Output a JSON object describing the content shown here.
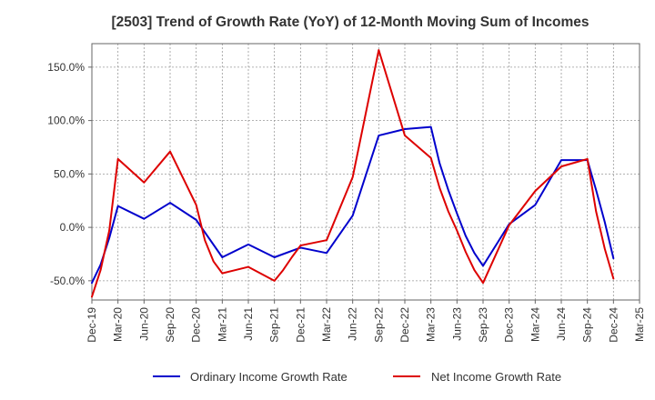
{
  "chart_data": {
    "type": "line",
    "title": "[2503]  Trend of Growth Rate (YoY) of 12-Month Moving Sum of Incomes",
    "xlabel": "",
    "ylabel": "",
    "x_tick_labels": [
      "Dec-19",
      "Mar-20",
      "Jun-20",
      "Sep-20",
      "Dec-20",
      "Mar-21",
      "Jun-21",
      "Sep-21",
      "Dec-21",
      "Mar-22",
      "Jun-22",
      "Sep-22",
      "Dec-22",
      "Mar-23",
      "Jun-23",
      "Sep-23",
      "Dec-23",
      "Mar-24",
      "Jun-24",
      "Sep-24",
      "Dec-24",
      "Mar-25"
    ],
    "y_ticks": [
      150,
      100,
      50,
      0,
      -50
    ],
    "y_tick_labels": [
      "150.0%",
      "100.0%",
      "50.0%",
      "0.0%",
      "-50.0%"
    ],
    "ylim": [
      -68,
      172
    ],
    "grid": true,
    "legend_position": "bottom",
    "series": [
      {
        "name": "Ordinary Income Growth Rate",
        "color": "#0000cc",
        "points": [
          {
            "x": "Dec-19",
            "y": -52
          },
          {
            "x": "Jan-20",
            "y": -35
          },
          {
            "x": "Feb-20",
            "y": -10
          },
          {
            "x": "Mar-20",
            "y": 20
          },
          {
            "x": "Jun-20",
            "y": 8
          },
          {
            "x": "Sep-20",
            "y": 23
          },
          {
            "x": "Dec-20",
            "y": 7
          },
          {
            "x": "Mar-21",
            "y": -28
          },
          {
            "x": "Jun-21",
            "y": -16
          },
          {
            "x": "Sep-21",
            "y": -28
          },
          {
            "x": "Dec-21",
            "y": -19
          },
          {
            "x": "Mar-22",
            "y": -24
          },
          {
            "x": "Jun-22",
            "y": 11
          },
          {
            "x": "Sep-22",
            "y": 86
          },
          {
            "x": "Dec-22",
            "y": 92
          },
          {
            "x": "Mar-23",
            "y": 94
          },
          {
            "x": "Apr-23",
            "y": 60
          },
          {
            "x": "May-23",
            "y": 35
          },
          {
            "x": "Jun-23",
            "y": 13
          },
          {
            "x": "Jul-23",
            "y": -8
          },
          {
            "x": "Aug-23",
            "y": -24
          },
          {
            "x": "Sep-23",
            "y": -36
          },
          {
            "x": "Dec-23",
            "y": 3
          },
          {
            "x": "Mar-24",
            "y": 21
          },
          {
            "x": "Jun-24",
            "y": 63
          },
          {
            "x": "Sep-24",
            "y": 63
          },
          {
            "x": "Oct-24",
            "y": 35
          },
          {
            "x": "Nov-24",
            "y": 5
          },
          {
            "x": "Dec-24",
            "y": -29
          }
        ]
      },
      {
        "name": "Net Income Growth Rate",
        "color": "#dd0000",
        "points": [
          {
            "x": "Dec-19",
            "y": -65
          },
          {
            "x": "Jan-20",
            "y": -40
          },
          {
            "x": "Feb-20",
            "y": -3
          },
          {
            "x": "Mar-20",
            "y": 64
          },
          {
            "x": "Jun-20",
            "y": 42
          },
          {
            "x": "Sep-20",
            "y": 71
          },
          {
            "x": "Dec-20",
            "y": 21
          },
          {
            "x": "Jan-21",
            "y": -12
          },
          {
            "x": "Feb-21",
            "y": -32
          },
          {
            "x": "Mar-21",
            "y": -43
          },
          {
            "x": "Jun-21",
            "y": -37
          },
          {
            "x": "Sep-21",
            "y": -50
          },
          {
            "x": "Oct-21",
            "y": -40
          },
          {
            "x": "Nov-21",
            "y": -28
          },
          {
            "x": "Dec-21",
            "y": -17
          },
          {
            "x": "Mar-22",
            "y": -12
          },
          {
            "x": "Jun-22",
            "y": 47
          },
          {
            "x": "Sep-22",
            "y": 166
          },
          {
            "x": "Dec-22",
            "y": 86
          },
          {
            "x": "Mar-23",
            "y": 65
          },
          {
            "x": "Apr-23",
            "y": 37
          },
          {
            "x": "May-23",
            "y": 15
          },
          {
            "x": "Jun-23",
            "y": -3
          },
          {
            "x": "Jul-23",
            "y": -23
          },
          {
            "x": "Aug-23",
            "y": -40
          },
          {
            "x": "Sep-23",
            "y": -52
          },
          {
            "x": "Dec-23",
            "y": 2
          },
          {
            "x": "Mar-24",
            "y": 34
          },
          {
            "x": "Jun-24",
            "y": 57
          },
          {
            "x": "Sep-24",
            "y": 64
          },
          {
            "x": "Oct-24",
            "y": 15
          },
          {
            "x": "Nov-24",
            "y": -20
          },
          {
            "x": "Dec-24",
            "y": -48
          }
        ]
      }
    ]
  }
}
